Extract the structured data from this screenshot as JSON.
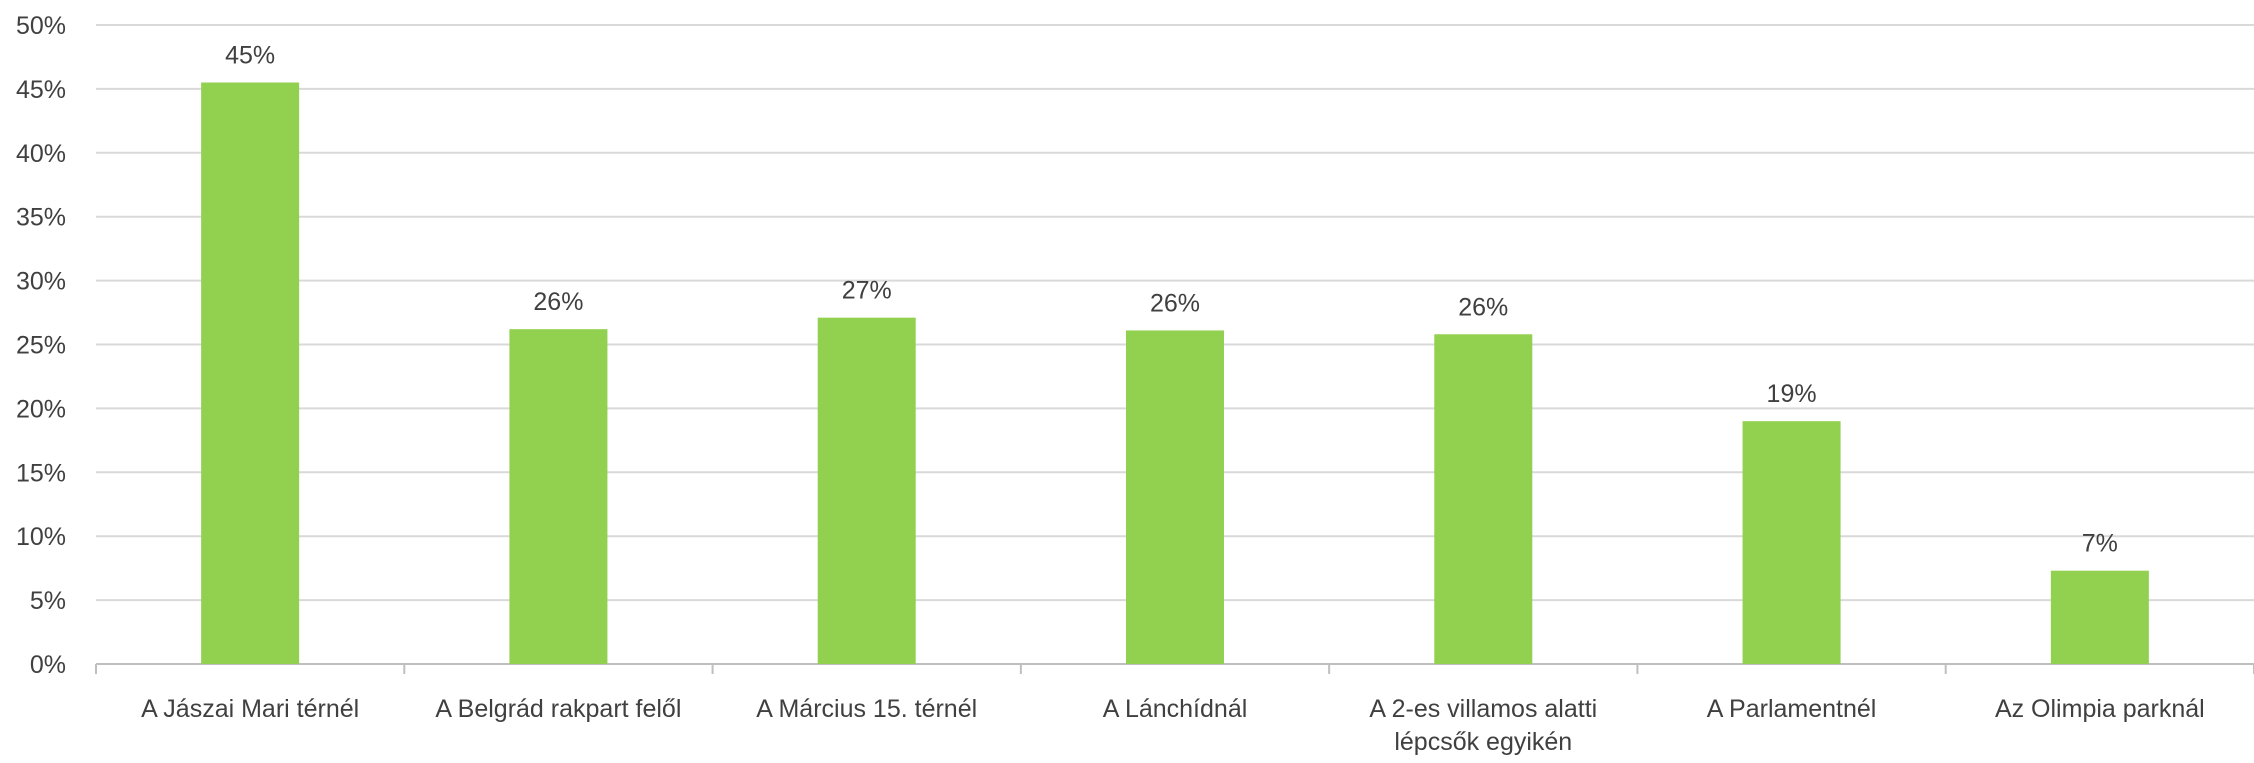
{
  "chart_data": {
    "type": "bar",
    "categories": [
      [
        "A Jászai Mari térnél"
      ],
      [
        "A Belgrád rakpart felől"
      ],
      [
        "A Március 15. térnél"
      ],
      [
        "A Lánchídnál"
      ],
      [
        "A 2-es villamos alatti",
        "lépcsők egyikén"
      ],
      [
        "A Parlamentnél"
      ],
      [
        "Az Olimpia parknál"
      ]
    ],
    "values": [
      45.5,
      26.2,
      27.1,
      26.1,
      25.8,
      19.0,
      7.3
    ],
    "data_labels": [
      "45%",
      "26%",
      "27%",
      "26%",
      "26%",
      "19%",
      "7%"
    ],
    "y_ticks": [
      "0%",
      "5%",
      "10%",
      "15%",
      "20%",
      "25%",
      "30%",
      "35%",
      "40%",
      "45%",
      "50%"
    ],
    "ylim": [
      0,
      50
    ],
    "y_step": 5,
    "grid": true,
    "legend": "none",
    "title": "",
    "xlabel": "",
    "ylabel": "",
    "colors": {
      "bar": "#92D050",
      "grid": "#D9D9D9",
      "axis": "#BFBFBF",
      "text": "#404040"
    }
  }
}
